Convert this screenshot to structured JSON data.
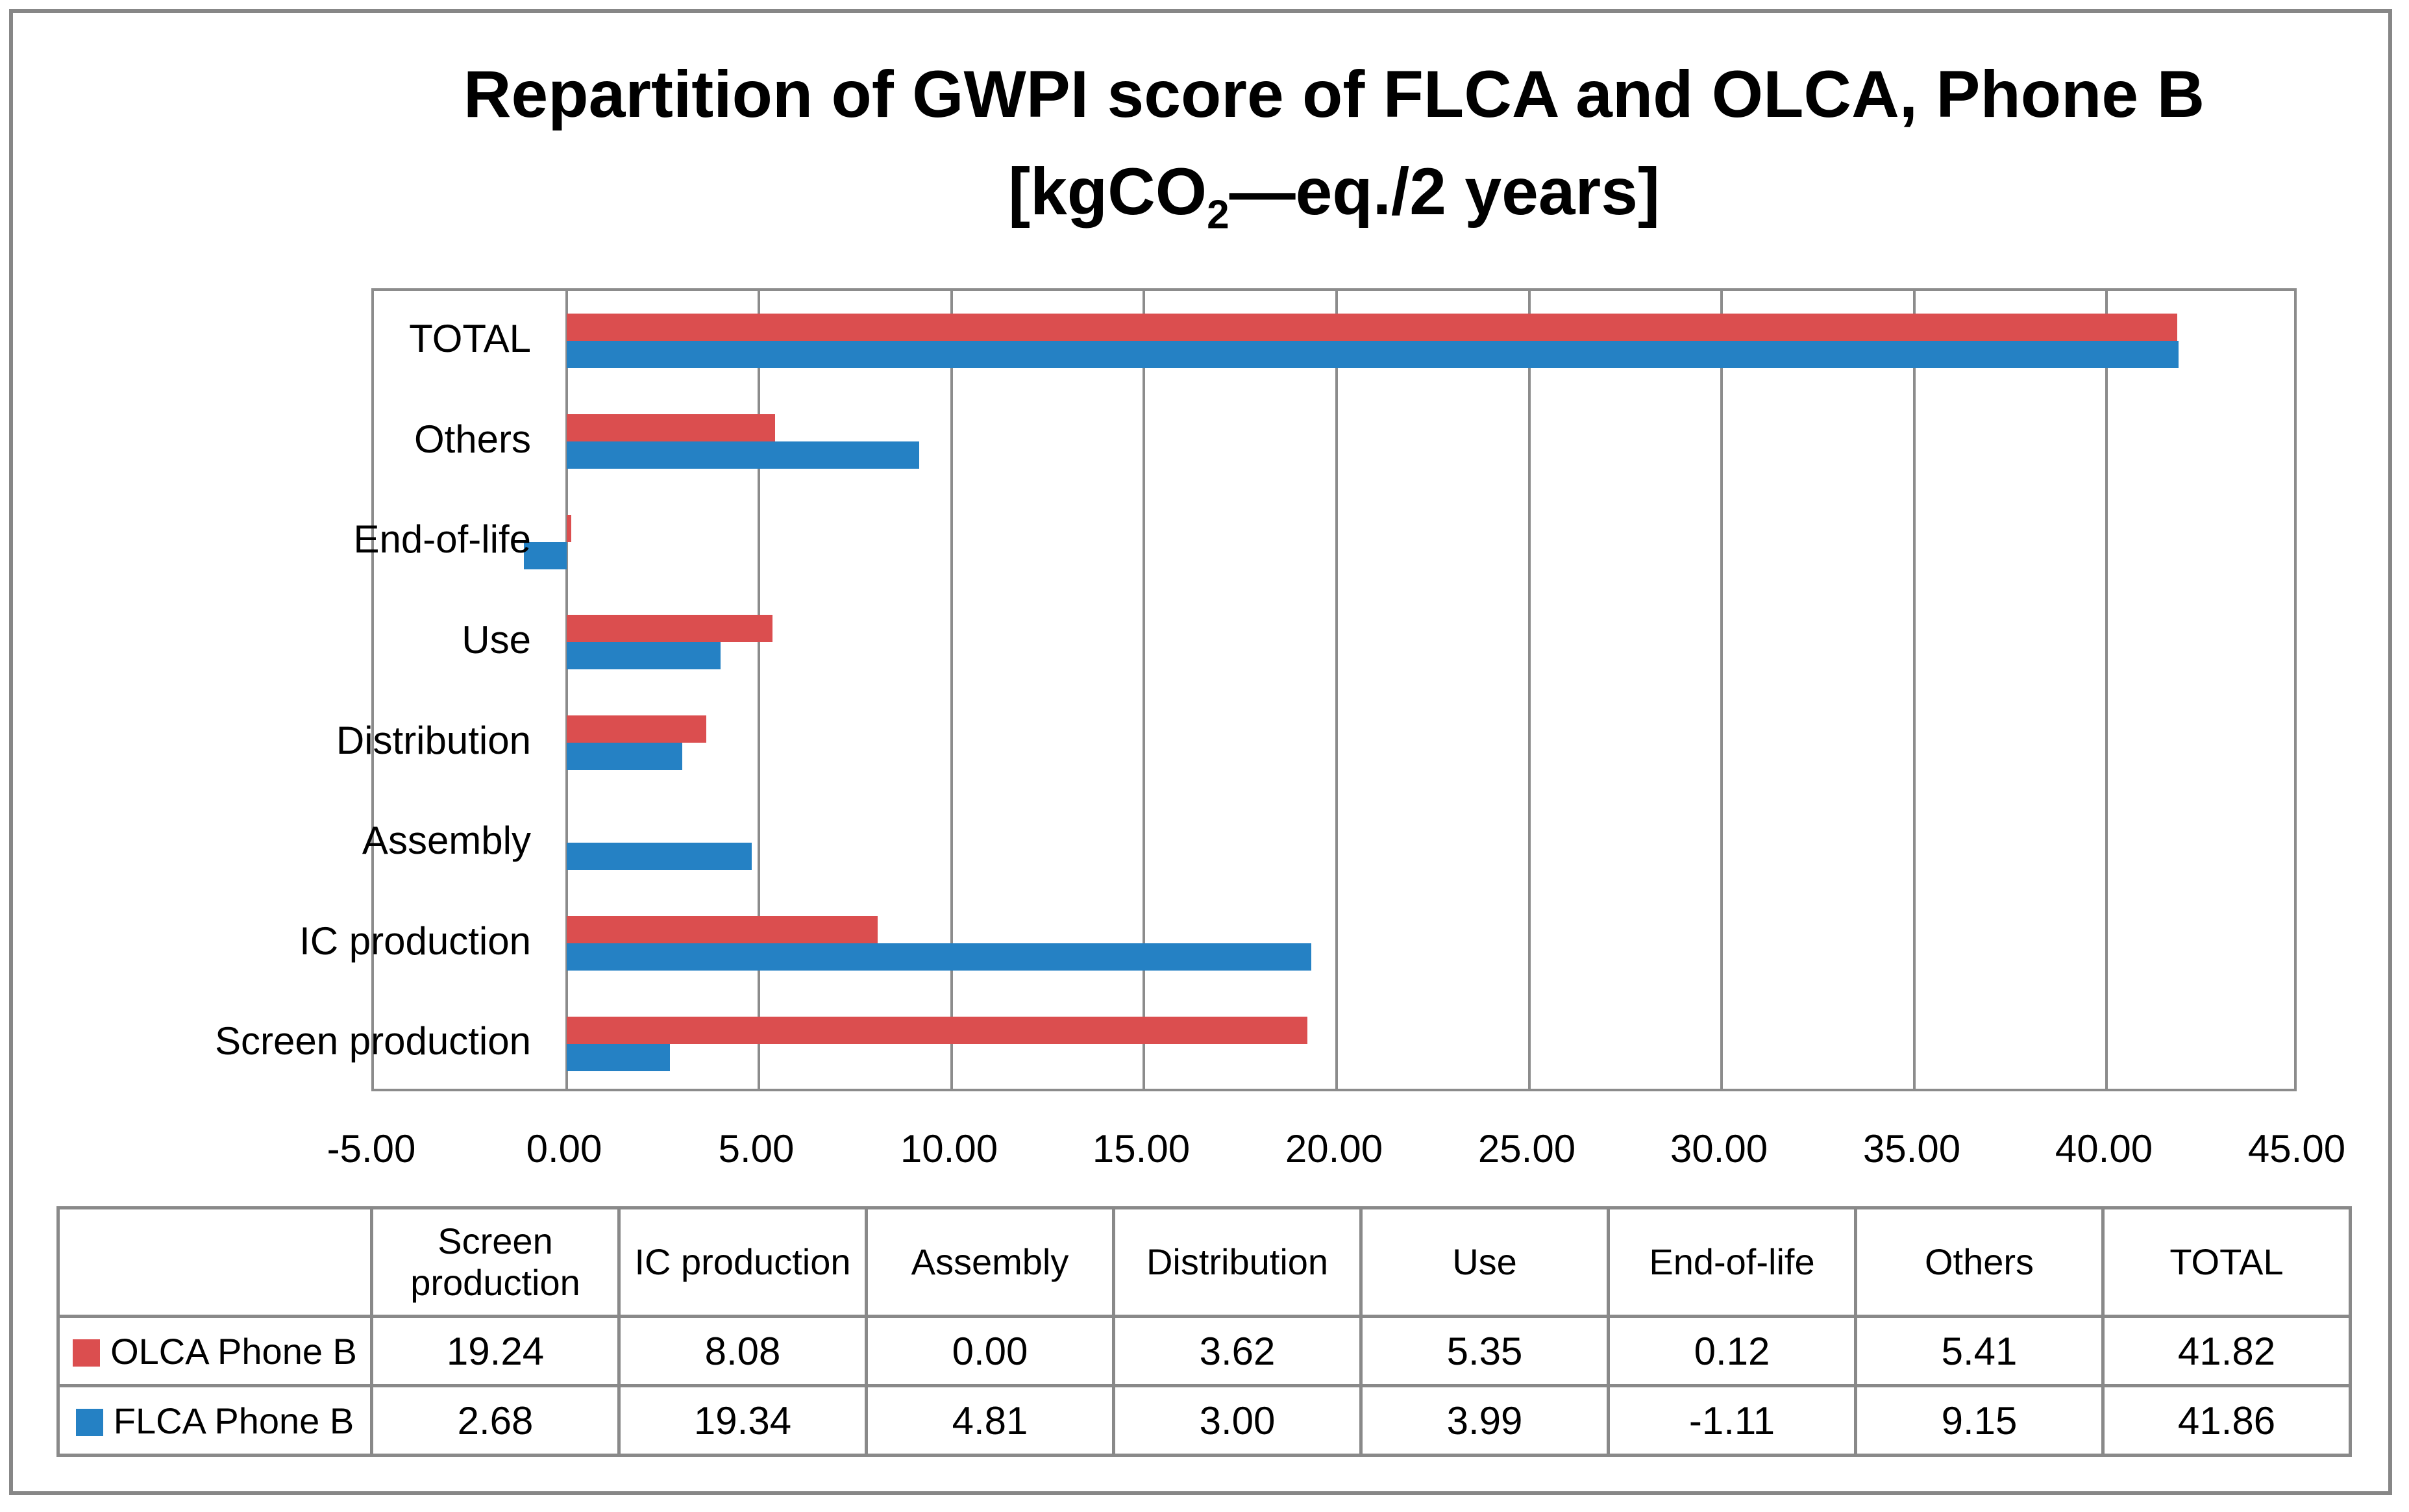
{
  "title": {
    "line1": "Repartition of GWPI score of FLCA and OLCA, Phone B",
    "line2_pre": "[kgCO",
    "line2_sub": "2",
    "line2_post": "—eq./2 years]"
  },
  "chart_data": {
    "type": "bar",
    "orientation": "horizontal",
    "title": "Repartition of GWPI score of FLCA and OLCA, Phone B [kgCO2—eq./2 years]",
    "categories_top_to_bottom": [
      "TOTAL",
      "Others",
      "End-of-life",
      "Use",
      "Distribution",
      "Assembly",
      "IC production",
      "Screen production"
    ],
    "series": [
      {
        "name": "OLCA Phone B",
        "color": "#DB4E4F",
        "values": [
          41.82,
          5.41,
          0.12,
          5.35,
          3.62,
          0.0,
          8.08,
          19.24
        ]
      },
      {
        "name": "FLCA Phone B",
        "color": "#2581C4",
        "values": [
          41.86,
          9.15,
          -1.11,
          3.99,
          3.0,
          4.81,
          19.34,
          2.68
        ]
      }
    ],
    "x_axis": {
      "min": -5,
      "max": 45,
      "step": 5,
      "tick_labels": [
        "-5.00",
        "0.00",
        "5.00",
        "10.00",
        "15.00",
        "20.00",
        "25.00",
        "30.00",
        "35.00",
        "40.00",
        "45.00"
      ]
    },
    "grid": true,
    "legend_position": "table-rows-left"
  },
  "table": {
    "columns": [
      "Screen production",
      "IC production",
      "Assembly",
      "Distribution",
      "Use",
      "End-of-life",
      "Others",
      "TOTAL"
    ],
    "rows": [
      {
        "label": "OLCA Phone B",
        "key_color": "#DB4E4F",
        "values": [
          "19.24",
          "8.08",
          "0.00",
          "3.62",
          "5.35",
          "0.12",
          "5.41",
          "41.82"
        ]
      },
      {
        "label": "FLCA Phone B",
        "key_color": "#2581C4",
        "values": [
          "2.68",
          "19.34",
          "4.81",
          "3.00",
          "3.99",
          "-1.11",
          "9.15",
          "41.86"
        ]
      }
    ]
  },
  "colors": {
    "olca": "#DB4E4F",
    "flca": "#2581C4",
    "grid": "#8C8C8C",
    "frame": "#878787",
    "table_border": "#898989",
    "text": "#000000"
  }
}
